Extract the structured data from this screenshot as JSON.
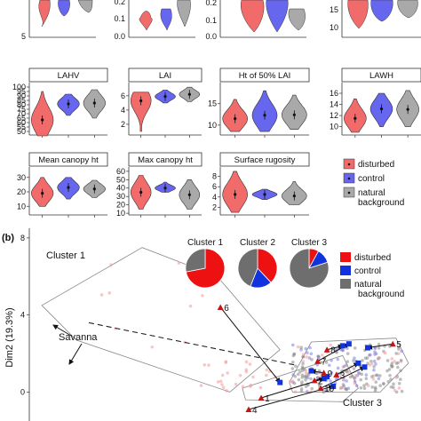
{
  "panel_b_label": "(b)",
  "chart_data": [
    {
      "type": "violin",
      "panel": "a",
      "title": "LAHV",
      "categories": [
        "disturbed",
        "control",
        "natural background"
      ],
      "yticks": [
        50,
        55,
        60,
        65,
        70,
        75,
        80,
        85,
        90,
        95,
        100
      ],
      "ylim": [
        46,
        103
      ],
      "series": [
        {
          "name": "disturbed",
          "values": [
            45,
            95
          ],
          "median": 63
        },
        {
          "name": "control",
          "values": [
            68,
            92
          ],
          "median": 81
        },
        {
          "name": "natural background",
          "values": [
            65,
            97
          ],
          "median": 82
        }
      ]
    },
    {
      "type": "violin",
      "panel": "a",
      "title": "LAI",
      "categories": [
        "disturbed",
        "control",
        "natural background"
      ],
      "yticks": [
        2,
        4,
        6
      ],
      "ylim": [
        0.5,
        7.6
      ],
      "series": [
        {
          "name": "disturbed",
          "values": [
            1.0,
            6.5
          ],
          "median": 5.3
        },
        {
          "name": "control",
          "values": [
            5.0,
            6.8
          ],
          "median": 5.9
        },
        {
          "name": "natural background",
          "values": [
            5.2,
            7.2
          ],
          "median": 6.2
        }
      ]
    },
    {
      "type": "violin",
      "panel": "a",
      "title": "Ht of 50% LAI",
      "categories": [
        "disturbed",
        "control",
        "natural background"
      ],
      "yticks": [
        10,
        15
      ],
      "ylim": [
        7.7,
        19.5
      ],
      "series": [
        {
          "name": "disturbed",
          "values": [
            8.5,
            16
          ],
          "median": 11.5
        },
        {
          "name": "control",
          "values": [
            8.5,
            18
          ],
          "median": 12.3
        },
        {
          "name": "natural background",
          "values": [
            9,
            17
          ],
          "median": 12.4
        }
      ]
    },
    {
      "type": "violin",
      "panel": "a",
      "title": "LAWH",
      "categories": [
        "disturbed",
        "control",
        "natural background"
      ],
      "yticks": [
        10,
        12,
        14,
        16
      ],
      "ylim": [
        8.5,
        17.6
      ],
      "series": [
        {
          "name": "disturbed",
          "values": [
            9,
            15
          ],
          "median": 11.5
        },
        {
          "name": "control",
          "values": [
            10,
            16
          ],
          "median": 13.2
        },
        {
          "name": "natural background",
          "values": [
            10,
            16.5
          ],
          "median": 13.1
        }
      ]
    },
    {
      "type": "violin",
      "panel": "a",
      "title": "Mean canopy ht",
      "categories": [
        "disturbed",
        "control",
        "natural background"
      ],
      "yticks": [
        10,
        20,
        30
      ],
      "ylim": [
        4,
        36
      ],
      "series": [
        {
          "name": "disturbed",
          "values": [
            10,
            30
          ],
          "median": 19
        },
        {
          "name": "control",
          "values": [
            15,
            30
          ],
          "median": 23
        },
        {
          "name": "natural background",
          "values": [
            16,
            28
          ],
          "median": 22
        }
      ]
    },
    {
      "type": "violin",
      "panel": "a",
      "title": "Max canopy ht",
      "categories": [
        "disturbed",
        "control",
        "natural background"
      ],
      "yticks": [
        10,
        20,
        30,
        40,
        50,
        60
      ],
      "ylim": [
        8,
        63
      ],
      "series": [
        {
          "name": "disturbed",
          "values": [
            15,
            55
          ],
          "median": 35
        },
        {
          "name": "control",
          "values": [
            35,
            47
          ],
          "median": 40
        },
        {
          "name": "natural background",
          "values": [
            15,
            50
          ],
          "median": 32
        }
      ]
    },
    {
      "type": "violin",
      "panel": "a",
      "title": "Surface rugosity",
      "categories": [
        "disturbed",
        "control",
        "natural background"
      ],
      "yticks": [
        2,
        4,
        6,
        8
      ],
      "ylim": [
        0.5,
        9.5
      ],
      "series": [
        {
          "name": "disturbed",
          "values": [
            1,
            9
          ],
          "median": 4.5
        },
        {
          "name": "control",
          "values": [
            3.5,
            5.5
          ],
          "median": 4.5
        },
        {
          "name": "natural background",
          "values": [
            2.5,
            7
          ],
          "median": 4.2
        }
      ]
    },
    {
      "type": "scatter",
      "panel": "b",
      "ylabel": "Dim2 (19.3%)",
      "yticks": [
        0,
        4,
        8
      ],
      "ylim": [
        -1.5,
        8.5
      ],
      "xlim": [
        -2.2,
        10.3
      ],
      "annotations": [
        "Cluster 1",
        "Cluster 3",
        "Savanna"
      ],
      "point_labels": [
        "1",
        "2",
        "3",
        "4",
        "5",
        "6",
        "7",
        "8",
        "9",
        "10"
      ],
      "pies": [
        {
          "title": "Cluster 1",
          "shares": {
            "disturbed": 0.72,
            "control": 0.0,
            "natural background": 0.28
          }
        },
        {
          "title": "Cluster 2",
          "shares": {
            "disturbed": 0.38,
            "control": 0.18,
            "natural background": 0.44
          }
        },
        {
          "title": "Cluster 3",
          "shares": {
            "disturbed": 0.08,
            "control": 0.12,
            "natural background": 0.8
          }
        }
      ],
      "legend": [
        {
          "label": "disturbed",
          "color": "#ee1111"
        },
        {
          "label": "control",
          "color": "#1133dd"
        },
        {
          "label": "natural\nbackground",
          "color": "#6e6e6e"
        }
      ]
    }
  ],
  "legend_a": [
    {
      "label": "disturbed",
      "color": "#f26b6b"
    },
    {
      "label": "control",
      "color": "#6666ee"
    },
    {
      "label": "natural\nbackground",
      "color": "#a9a9a9"
    }
  ],
  "colors": {
    "disturbed": "#f26b6b",
    "control": "#6666ee",
    "natural": "#a9a9a9",
    "pie_disturbed": "#ee1111",
    "pie_control": "#1133dd",
    "pie_natural": "#6e6e6e"
  }
}
